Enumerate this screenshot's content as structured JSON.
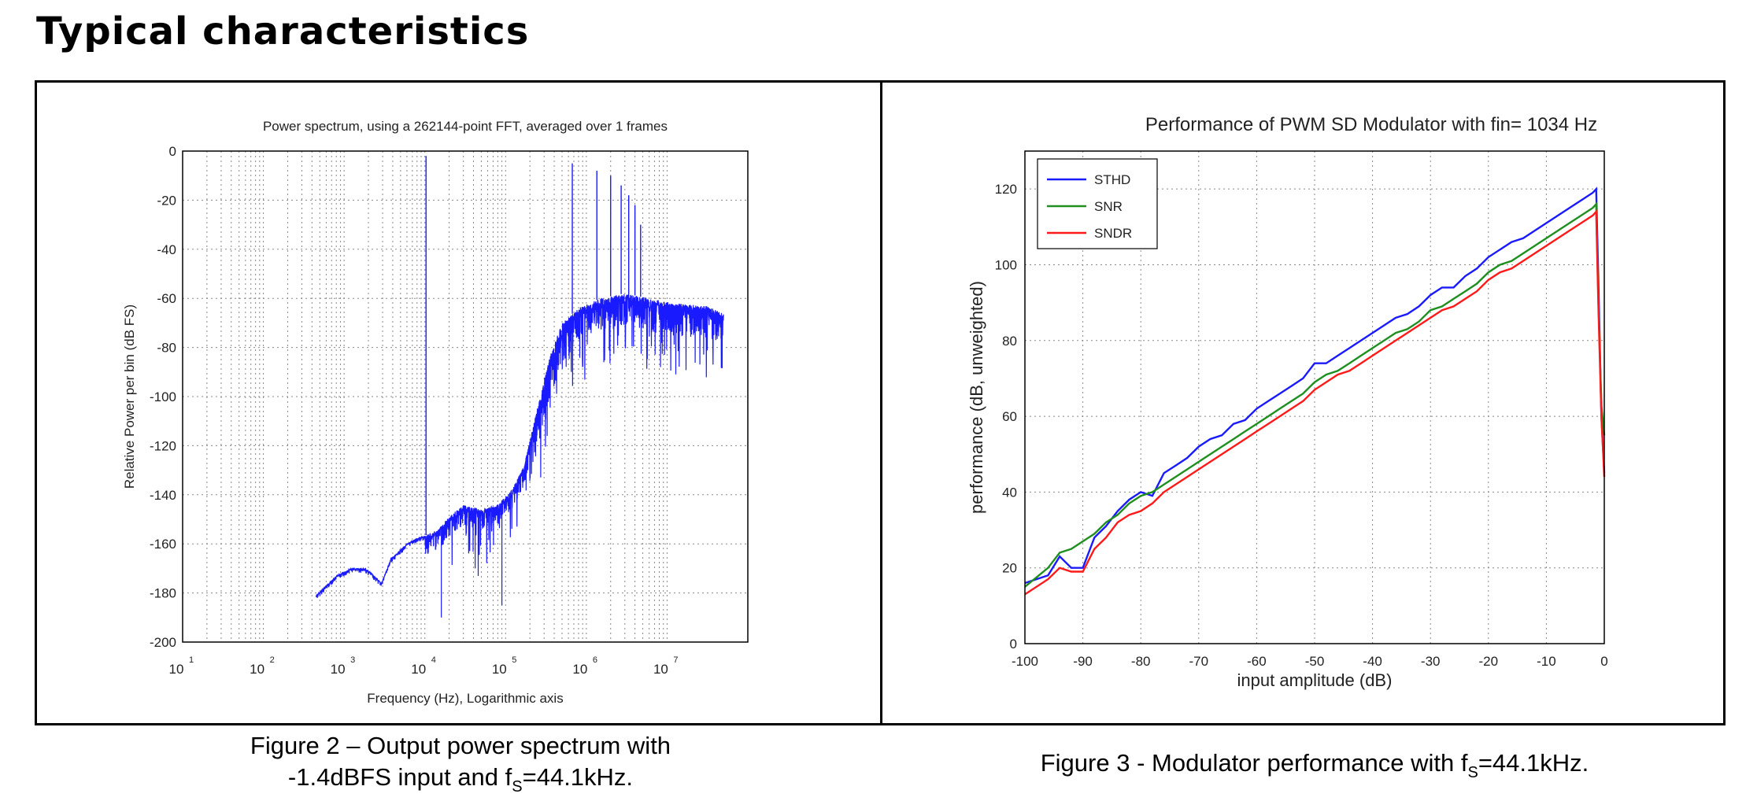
{
  "heading": "Typical characteristics",
  "captions": {
    "fig2_line1": "Figure 2 – Output power spectrum with",
    "fig2_line2_pre": "-1.4dBFS input and f",
    "fig2_line2_sub": "S",
    "fig2_line2_post": "=44.1kHz.",
    "fig3_pre": "Figure 3 - Modulator performance with f",
    "fig3_sub": "S",
    "fig3_post": "=44.1kHz."
  },
  "colors": {
    "blue": "#1a1aff",
    "green": "#1f8f1f",
    "red": "#ff1a1a",
    "grid": "#888888"
  },
  "chart_data": [
    {
      "type": "line",
      "title": "Power spectrum, using a 262144-point FFT, averaged over 1 frames",
      "xlabel": "Frequency (Hz), Logarithmic axis",
      "ylabel": "Relative Power per bin (dB FS)",
      "x_scale": "log",
      "xlim": [
        1,
        10000000
      ],
      "ylim": [
        -200,
        0
      ],
      "x_ticks": [
        {
          "base": "10",
          "exp": "1"
        },
        {
          "base": "10",
          "exp": "2"
        },
        {
          "base": "10",
          "exp": "3"
        },
        {
          "base": "10",
          "exp": "4"
        },
        {
          "base": "10",
          "exp": "5"
        },
        {
          "base": "10",
          "exp": "6"
        },
        {
          "base": "10",
          "exp": "7"
        }
      ],
      "y_ticks": [
        0,
        -20,
        -40,
        -60,
        -80,
        -100,
        -120,
        -140,
        -160,
        -180,
        -200
      ],
      "grid": true,
      "series": [
        {
          "color": "#1a1aff",
          "floor": [
            [
              45,
              -181
            ],
            [
              80,
              -173
            ],
            [
              120,
              -170
            ],
            [
              180,
              -170
            ],
            [
              220,
              -172
            ],
            [
              290,
              -176
            ],
            [
              380,
              -166
            ],
            [
              480,
              -163
            ],
            [
              600,
              -160
            ],
            [
              750,
              -158
            ],
            [
              950,
              -157
            ],
            [
              1100,
              -156
            ],
            [
              1500,
              -154
            ],
            [
              2000,
              -149
            ],
            [
              3000,
              -144
            ],
            [
              5000,
              -146
            ],
            [
              8000,
              -144
            ],
            [
              12000,
              -138
            ],
            [
              17000,
              -128
            ],
            [
              25000,
              -104
            ],
            [
              35000,
              -84
            ],
            [
              50000,
              -70
            ],
            [
              80000,
              -64
            ],
            [
              150000,
              -60
            ],
            [
              300000,
              -58
            ],
            [
              600000,
              -60
            ],
            [
              1200000,
              -62
            ],
            [
              3000000,
              -63
            ],
            [
              5000000,
              -66
            ]
          ],
          "peaks": [
            [
              1034,
              -2
            ],
            [
              67000,
              -5
            ],
            [
              135000,
              -8
            ],
            [
              200000,
              -10
            ],
            [
              270000,
              -14
            ],
            [
              335000,
              -18
            ],
            [
              400000,
              -22
            ],
            [
              470000,
              -30
            ]
          ]
        }
      ]
    },
    {
      "type": "line",
      "title": "Performance of PWM SD Modulator with fin= 1034 Hz",
      "xlabel": "input amplitude (dB)",
      "ylabel": "performance (dB, unweighted)",
      "xlim": [
        -100,
        0
      ],
      "ylim": [
        0,
        130
      ],
      "x_ticks": [
        -100,
        -90,
        -80,
        -70,
        -60,
        -50,
        -40,
        -30,
        -20,
        -10,
        0
      ],
      "y_ticks": [
        0,
        20,
        40,
        60,
        80,
        100,
        120
      ],
      "grid": true,
      "legend": "top-left",
      "series": [
        {
          "name": "STHD",
          "color": "#1a1aff",
          "x": [
            -100,
            -96,
            -94,
            -92,
            -90,
            -88,
            -86,
            -84,
            -82,
            -80,
            -78,
            -76,
            -74,
            -72,
            -70,
            -68,
            -66,
            -64,
            -62,
            -60,
            -58,
            -56,
            -54,
            -52,
            -50,
            -48,
            -46,
            -44,
            -42,
            -40,
            -38,
            -36,
            -34,
            -32,
            -30,
            -28,
            -26,
            -24,
            -22,
            -20,
            -18,
            -16,
            -14,
            -12,
            -10,
            -8,
            -6,
            -4,
            -2,
            -1.4,
            -1,
            -0.5,
            0
          ],
          "y": [
            16,
            18,
            23,
            20,
            20,
            28,
            31,
            35,
            38,
            40,
            39,
            45,
            47,
            49,
            52,
            54,
            55,
            58,
            59,
            62,
            64,
            66,
            68,
            70,
            74,
            74,
            76,
            78,
            80,
            82,
            84,
            86,
            87,
            89,
            92,
            94,
            94,
            97,
            99,
            102,
            104,
            106,
            107,
            109,
            111,
            113,
            115,
            117,
            119,
            120,
            95,
            60,
            45
          ]
        },
        {
          "name": "SNR",
          "color": "#1f8f1f",
          "x": [
            -100,
            -96,
            -94,
            -92,
            -90,
            -88,
            -86,
            -84,
            -82,
            -80,
            -78,
            -76,
            -74,
            -72,
            -70,
            -68,
            -66,
            -64,
            -62,
            -60,
            -58,
            -56,
            -54,
            -52,
            -50,
            -48,
            -46,
            -44,
            -42,
            -40,
            -38,
            -36,
            -34,
            -32,
            -30,
            -28,
            -26,
            -24,
            -22,
            -20,
            -18,
            -16,
            -14,
            -12,
            -10,
            -8,
            -6,
            -4,
            -2,
            -1.4,
            -1,
            -0.5,
            0
          ],
          "y": [
            15,
            20,
            24,
            25,
            27,
            29,
            32,
            34,
            37,
            39,
            40,
            42,
            44,
            46,
            48,
            50,
            52,
            54,
            56,
            58,
            60,
            62,
            64,
            66,
            69,
            71,
            72,
            74,
            76,
            78,
            80,
            82,
            83,
            85,
            88,
            89,
            91,
            93,
            95,
            98,
            100,
            101,
            103,
            105,
            107,
            109,
            111,
            113,
            115,
            116,
            90,
            63,
            55
          ]
        },
        {
          "name": "SNDR",
          "color": "#ff1a1a",
          "x": [
            -100,
            -96,
            -94,
            -92,
            -90,
            -88,
            -86,
            -84,
            -82,
            -80,
            -78,
            -76,
            -74,
            -72,
            -70,
            -68,
            -66,
            -64,
            -62,
            -60,
            -58,
            -56,
            -54,
            -52,
            -50,
            -48,
            -46,
            -44,
            -42,
            -40,
            -38,
            -36,
            -34,
            -32,
            -30,
            -28,
            -26,
            -24,
            -22,
            -20,
            -18,
            -16,
            -14,
            -12,
            -10,
            -8,
            -6,
            -4,
            -2,
            -1.4,
            -1,
            -0.5,
            0
          ],
          "y": [
            13,
            17,
            20,
            19,
            19,
            25,
            28,
            32,
            34,
            35,
            37,
            40,
            42,
            44,
            46,
            48,
            50,
            52,
            54,
            56,
            58,
            60,
            62,
            64,
            67,
            69,
            71,
            72,
            74,
            76,
            78,
            80,
            82,
            84,
            86,
            88,
            89,
            91,
            93,
            96,
            98,
            99,
            101,
            103,
            105,
            107,
            109,
            111,
            113,
            114,
            88,
            60,
            44
          ]
        }
      ]
    }
  ]
}
